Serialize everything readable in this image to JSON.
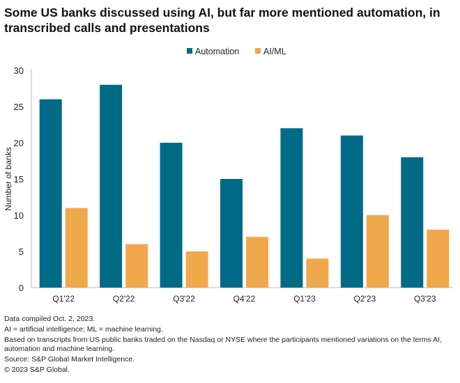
{
  "chart_data": {
    "type": "bar",
    "title": "Some US banks discussed using AI, but far more mentioned automation, in transcribed calls and presentations",
    "categories": [
      "Q1'22",
      "Q2'22",
      "Q3'22",
      "Q4'22",
      "Q1'23",
      "Q2'23",
      "Q3'23"
    ],
    "series": [
      {
        "name": "Automation",
        "color": "#006a87",
        "values": [
          26,
          28,
          20,
          15,
          22,
          21,
          18
        ]
      },
      {
        "name": "AI/ML",
        "color": "#f0a84c",
        "values": [
          11,
          6,
          5,
          7,
          4,
          10,
          8
        ]
      }
    ],
    "xlabel": "",
    "ylabel": "Number of banks",
    "ylim": [
      0,
      30
    ],
    "yticks": [
      0,
      5,
      10,
      15,
      20,
      25,
      30
    ],
    "grid": false,
    "legend": "top-center"
  },
  "notes": [
    "Data compiled Oct. 2, 2023.",
    "AI = artificial intelligence; ML = machine learning.",
    "Based on transcripts from US public banks traded on the Nasdaq or NYSE where the participants mentioned variations on the terms AI, automation and machine learning.",
    "Source: S&P Global Market Intelligence.",
    "© 2023 S&P Global."
  ]
}
